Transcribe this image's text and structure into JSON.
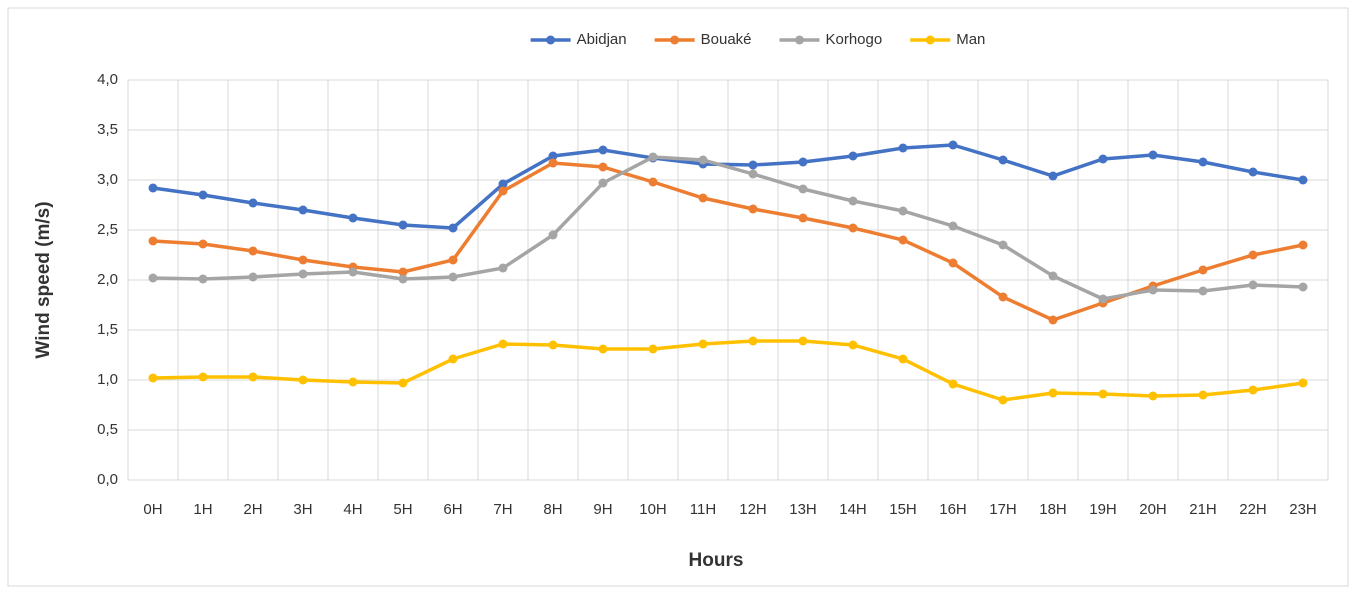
{
  "chart_data": {
    "type": "line",
    "x_label": "Hours",
    "y_label": "Wind speed (m/s)",
    "categories": [
      "0H",
      "1H",
      "2H",
      "3H",
      "4H",
      "5H",
      "6H",
      "7H",
      "8H",
      "9H",
      "10H",
      "11H",
      "12H",
      "13H",
      "14H",
      "15H",
      "16H",
      "17H",
      "18H",
      "19H",
      "20H",
      "21H",
      "22H",
      "23H"
    ],
    "series": [
      {
        "name": "Abidjan",
        "color": "#4472c4",
        "values": [
          2.92,
          2.85,
          2.77,
          2.7,
          2.62,
          2.55,
          2.52,
          2.96,
          3.24,
          3.3,
          3.22,
          3.16,
          3.15,
          3.18,
          3.24,
          3.32,
          3.35,
          3.2,
          3.04,
          3.21,
          3.25,
          3.18,
          3.08,
          3.0
        ]
      },
      {
        "name": "Bouaké",
        "color": "#ed7d31",
        "values": [
          2.39,
          2.36,
          2.29,
          2.2,
          2.13,
          2.08,
          2.2,
          2.89,
          3.17,
          3.13,
          2.98,
          2.82,
          2.71,
          2.62,
          2.52,
          2.4,
          2.17,
          1.83,
          1.6,
          1.77,
          1.94,
          2.1,
          2.25,
          2.35
        ]
      },
      {
        "name": "Korhogo",
        "color": "#a5a5a5",
        "values": [
          2.02,
          2.01,
          2.03,
          2.06,
          2.08,
          2.01,
          2.03,
          2.12,
          2.45,
          2.97,
          3.23,
          3.2,
          3.06,
          2.91,
          2.79,
          2.69,
          2.54,
          2.35,
          2.04,
          1.81,
          1.9,
          1.89,
          1.95,
          1.93
        ]
      },
      {
        "name": "Man",
        "color": "#ffc000",
        "values": [
          1.02,
          1.03,
          1.03,
          1.0,
          0.98,
          0.97,
          1.21,
          1.36,
          1.35,
          1.31,
          1.31,
          1.36,
          1.39,
          1.39,
          1.35,
          1.21,
          0.96,
          0.8,
          0.87,
          0.86,
          0.84,
          0.85,
          0.9,
          0.97
        ]
      }
    ],
    "ylim": [
      0,
      4
    ],
    "yticks": [
      {
        "value": 0,
        "label": "0,0"
      },
      {
        "value": 0.5,
        "label": "0,5"
      },
      {
        "value": 1,
        "label": "1,0"
      },
      {
        "value": 1.5,
        "label": "1,5"
      },
      {
        "value": 2,
        "label": "2,0"
      },
      {
        "value": 2.5,
        "label": "2,5"
      },
      {
        "value": 3,
        "label": "3,0"
      },
      {
        "value": 3.5,
        "label": "3,5"
      },
      {
        "value": 4,
        "label": "4,0"
      }
    ],
    "grid": true,
    "legend": "top"
  }
}
